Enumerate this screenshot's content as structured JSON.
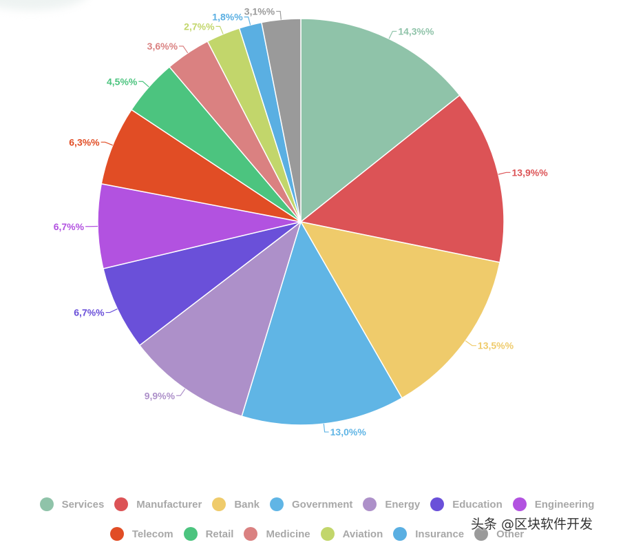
{
  "chart_data": {
    "type": "pie",
    "title": "",
    "start_angle_deg": 0,
    "direction": "clockwise",
    "slices": [
      {
        "name": "Services",
        "value": 14.3,
        "label": "14,3%%",
        "color": "#8fc3a9"
      },
      {
        "name": "Manufacturer",
        "value": 13.9,
        "label": "13,9%%",
        "color": "#dc5356"
      },
      {
        "name": "Bank",
        "value": 13.5,
        "label": "13,5%%",
        "color": "#efcb6b"
      },
      {
        "name": "Government",
        "value": 13.0,
        "label": "13,0%%",
        "color": "#60b5e5"
      },
      {
        "name": "Energy",
        "value": 9.9,
        "label": "9,9%%",
        "color": "#ad90c9"
      },
      {
        "name": "Education",
        "value": 6.7,
        "label": "6,7%%",
        "color": "#6a50d9"
      },
      {
        "name": "Engineering",
        "value": 6.7,
        "label": "6,7%%",
        "color": "#b252e0"
      },
      {
        "name": "Telecom",
        "value": 6.3,
        "label": "6,3%%",
        "color": "#e14d25"
      },
      {
        "name": "Retail",
        "value": 4.5,
        "label": "4,5%%",
        "color": "#4cc47f"
      },
      {
        "name": "Medicine",
        "value": 3.6,
        "label": "3,6%%",
        "color": "#da8181"
      },
      {
        "name": "Aviation",
        "value": 2.7,
        "label": "2,7%%",
        "color": "#c2d66b"
      },
      {
        "name": "Insurance",
        "value": 1.8,
        "label": "1,8%%",
        "color": "#5aafe2"
      },
      {
        "name": "Other",
        "value": 3.1,
        "label": "3,1%%",
        "color": "#9a9a9a"
      }
    ],
    "legend_position": "bottom"
  },
  "watermark": "头条 @区块软件开发"
}
